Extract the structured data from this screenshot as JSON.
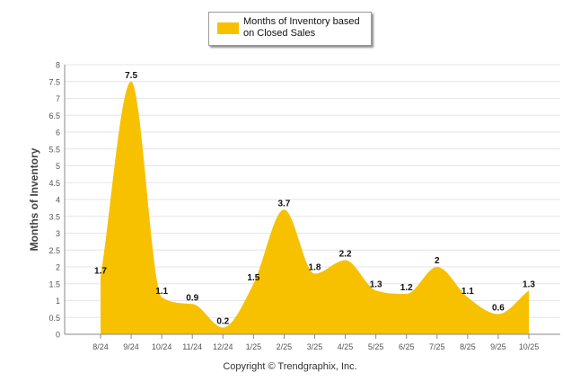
{
  "legend": {
    "label": "Months of Inventory based on Closed Sales"
  },
  "footer": {
    "copyright": "Copyright © Trendgraphix, Inc."
  },
  "colors": {
    "fill": "#f7c100",
    "grid": "#e6e6e6",
    "axis": "#888888",
    "text": "#555555"
  },
  "chart_data": {
    "type": "area",
    "title": "",
    "xlabel": "",
    "ylabel": "Months of Inventory",
    "ylim": [
      0,
      8
    ],
    "yticks": [
      "0",
      "0.5",
      "1",
      "1.5",
      "2",
      "2.5",
      "3",
      "3.5",
      "4",
      "4.5",
      "5",
      "5.5",
      "6",
      "6.5",
      "7",
      "7.5",
      "8"
    ],
    "categories": [
      "8/24",
      "9/24",
      "10/24",
      "11/24",
      "12/24",
      "1/25",
      "2/25",
      "3/25",
      "4/25",
      "5/25",
      "6/25",
      "7/25",
      "8/25",
      "9/25",
      "10/25"
    ],
    "series": [
      {
        "name": "Months of Inventory based on Closed Sales",
        "values": [
          1.7,
          7.5,
          1.1,
          0.9,
          0.2,
          1.5,
          3.7,
          1.8,
          2.2,
          1.3,
          1.2,
          2,
          1.1,
          0.6,
          1.3
        ],
        "labels": [
          "1.7",
          "7.5",
          "1.1",
          "0.9",
          "0.2",
          "1.5",
          "3.7",
          "1.8",
          "2.2",
          "1.3",
          "1.2",
          "2",
          "1.1",
          "0.6",
          "1.3"
        ]
      }
    ],
    "grid": true,
    "legend_position": "top-center"
  }
}
